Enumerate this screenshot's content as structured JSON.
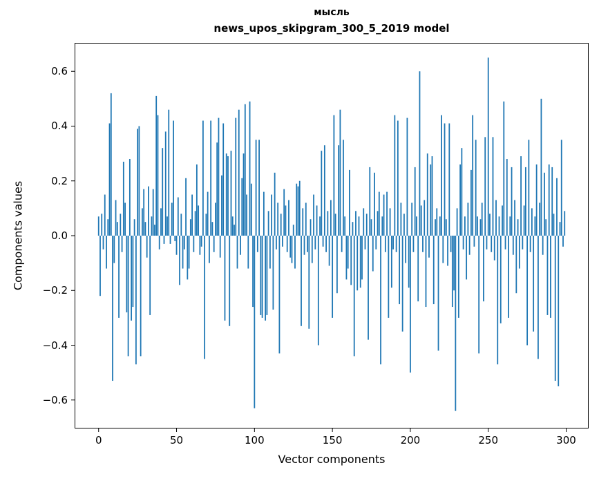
{
  "chart_data": {
    "type": "bar",
    "title": "мысль",
    "subtitle": "news_upos_skipgram_300_5_2019 model",
    "xlabel": "Vector components",
    "ylabel": "Components values",
    "bar_color": "#1f77b4",
    "grid": false,
    "legend": "none",
    "xlim": [
      -15.4,
      314.4
    ],
    "ylim": [
      -0.704,
      0.704
    ],
    "x_ticks": [
      {
        "v": 0,
        "label": "0"
      },
      {
        "v": 50,
        "label": "50"
      },
      {
        "v": 100,
        "label": "100"
      },
      {
        "v": 150,
        "label": "150"
      },
      {
        "v": 200,
        "label": "200"
      },
      {
        "v": 250,
        "label": "250"
      },
      {
        "v": 300,
        "label": "300"
      }
    ],
    "y_ticks": [
      {
        "v": -0.6,
        "label": "−0.6"
      },
      {
        "v": -0.4,
        "label": "−0.4"
      },
      {
        "v": -0.2,
        "label": "−0.2"
      },
      {
        "v": 0.0,
        "label": "0.0"
      },
      {
        "v": 0.2,
        "label": "0.2"
      },
      {
        "v": 0.4,
        "label": "0.4"
      },
      {
        "v": 0.6,
        "label": "0.6"
      }
    ],
    "values": [
      0.07,
      -0.22,
      0.08,
      -0.05,
      0.15,
      -0.12,
      0.06,
      0.41,
      0.52,
      -0.53,
      -0.1,
      0.13,
      0.05,
      -0.3,
      0.08,
      -0.06,
      0.27,
      0.12,
      -0.28,
      -0.44,
      0.28,
      -0.31,
      -0.26,
      0.06,
      -0.47,
      0.39,
      0.4,
      -0.44,
      0.1,
      0.17,
      0.05,
      -0.08,
      0.18,
      -0.29,
      0.07,
      0.17,
      0.04,
      0.51,
      0.44,
      -0.05,
      0.1,
      0.32,
      -0.03,
      0.38,
      0.07,
      0.46,
      -0.03,
      0.12,
      0.42,
      -0.02,
      -0.07,
      0.14,
      -0.18,
      0.08,
      -0.12,
      -0.05,
      0.21,
      -0.16,
      -0.12,
      0.06,
      0.15,
      -0.06,
      0.09,
      0.26,
      0.11,
      -0.07,
      -0.04,
      0.42,
      -0.45,
      0.08,
      0.16,
      -0.1,
      0.42,
      0.05,
      -0.06,
      0.12,
      0.34,
      0.43,
      -0.08,
      0.22,
      0.41,
      -0.31,
      0.3,
      0.29,
      -0.33,
      0.31,
      0.07,
      0.04,
      0.43,
      -0.12,
      0.46,
      -0.07,
      0.21,
      0.3,
      0.48,
      0.15,
      -0.12,
      0.49,
      0.19,
      -0.26,
      -0.63,
      0.35,
      -0.06,
      0.35,
      -0.29,
      -0.3,
      0.16,
      -0.31,
      -0.29,
      0.09,
      -0.12,
      0.15,
      -0.27,
      0.23,
      -0.05,
      0.12,
      -0.43,
      0.08,
      -0.04,
      0.17,
      0.11,
      -0.06,
      0.13,
      -0.08,
      -0.1,
      0.04,
      -0.12,
      0.19,
      0.18,
      0.2,
      -0.33,
      0.1,
      -0.07,
      0.12,
      -0.06,
      -0.34,
      0.06,
      -0.1,
      0.15,
      -0.05,
      0.11,
      -0.4,
      0.07,
      0.31,
      -0.04,
      0.33,
      -0.06,
      0.09,
      -0.11,
      0.13,
      -0.3,
      0.44,
      0.08,
      -0.21,
      0.33,
      0.46,
      -0.06,
      0.35,
      0.07,
      -0.16,
      -0.12,
      0.24,
      -0.18,
      0.05,
      -0.44,
      0.09,
      -0.2,
      0.07,
      -0.19,
      -0.16,
      0.1,
      -0.05,
      0.08,
      -0.38,
      0.25,
      0.06,
      -0.13,
      0.23,
      -0.05,
      0.09,
      0.16,
      -0.47,
      0.07,
      0.15,
      -0.06,
      0.16,
      -0.3,
      0.1,
      -0.19,
      -0.05,
      0.44,
      -0.06,
      0.42,
      -0.25,
      0.12,
      -0.35,
      0.08,
      -0.1,
      0.43,
      -0.19,
      -0.5,
      0.12,
      -0.06,
      0.25,
      0.07,
      -0.24,
      0.6,
      0.11,
      -0.06,
      0.13,
      -0.26,
      0.3,
      -0.08,
      0.26,
      0.29,
      -0.25,
      0.06,
      0.1,
      -0.42,
      0.07,
      0.44,
      -0.1,
      0.41,
      0.06,
      -0.11,
      0.41,
      -0.06,
      -0.26,
      -0.2,
      -0.64,
      0.1,
      -0.3,
      0.26,
      0.32,
      -0.05,
      0.07,
      -0.16,
      0.12,
      -0.07,
      0.24,
      0.44,
      -0.04,
      0.35,
      0.07,
      -0.43,
      0.06,
      0.12,
      -0.24,
      0.36,
      -0.05,
      0.65,
      0.08,
      -0.06,
      0.36,
      -0.09,
      0.13,
      -0.47,
      0.07,
      -0.32,
      0.11,
      0.49,
      -0.05,
      0.28,
      -0.3,
      0.07,
      0.25,
      -0.07,
      0.13,
      -0.21,
      0.06,
      -0.12,
      0.29,
      -0.05,
      0.11,
      0.25,
      -0.4,
      0.35,
      -0.06,
      0.1,
      -0.35,
      0.07,
      0.26,
      -0.45,
      0.12,
      0.5,
      -0.07,
      0.23,
      0.06,
      -0.29,
      0.26,
      -0.3,
      0.25,
      0.08,
      -0.53,
      0.21,
      -0.55,
      0.05,
      0.35,
      -0.04,
      0.09
    ]
  }
}
